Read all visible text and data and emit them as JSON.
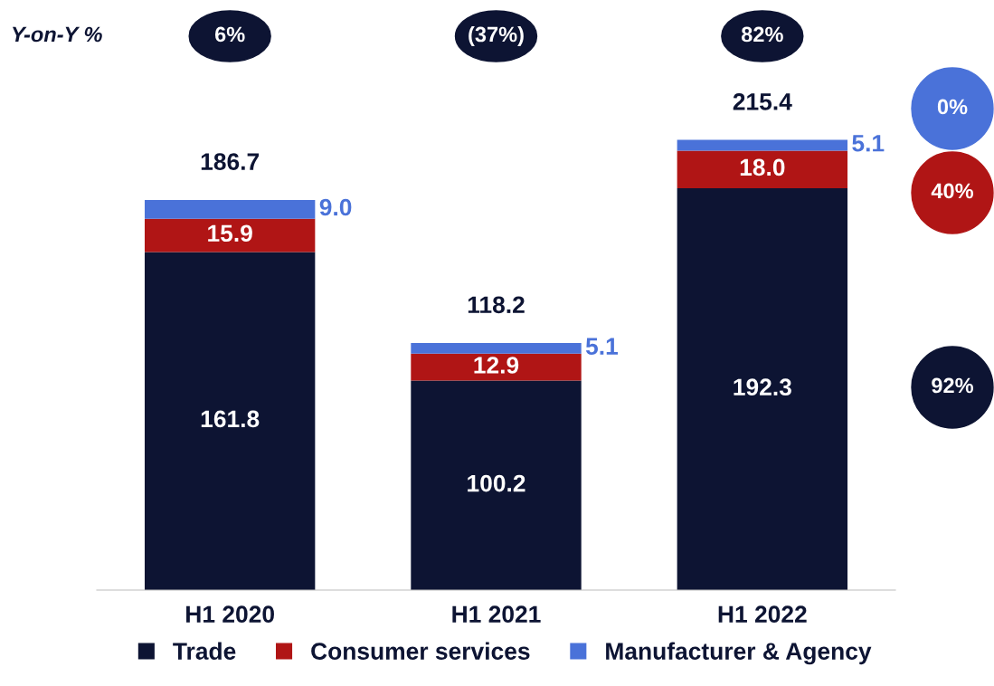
{
  "chart_data": {
    "type": "bar",
    "stacked": true,
    "legend": "bottom",
    "categories": [
      "H1 2020",
      "H1 2021",
      "H1 2022"
    ],
    "series": [
      {
        "name": "Trade",
        "color": "#0d1433",
        "values": [
          161.8,
          100.2,
          192.3
        ],
        "value_labels": [
          "161.8",
          "100.2",
          "192.3"
        ]
      },
      {
        "name": "Consumer services",
        "color": "#b01515",
        "values": [
          15.9,
          12.9,
          18.0
        ],
        "value_labels": [
          "15.9",
          "12.9",
          "18.0"
        ]
      },
      {
        "name": "Manufacturer & Agency",
        "color": "#4a72d9",
        "values": [
          9.0,
          5.1,
          5.1
        ],
        "value_labels": [
          "9.0",
          "5.1",
          "5.1"
        ]
      }
    ],
    "totals": [
      "186.7",
      "118.2",
      "215.4"
    ],
    "annotations": [
      "Y-on-Y %",
      "6%",
      "(37%)",
      "82%",
      "0%",
      "40%",
      "92%"
    ]
  }
}
